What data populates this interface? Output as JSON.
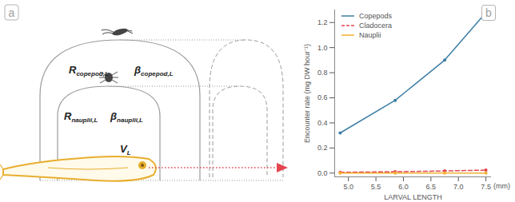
{
  "chart_data": {
    "type": "line",
    "panel_label": "b",
    "xlabel": "LARVAL LENGTH",
    "xlabel_unit": "(mm)",
    "ylabel": "Encounter rate (mg DW hour⁻¹)",
    "x": [
      4.85,
      5.85,
      6.75,
      7.5
    ],
    "series": [
      {
        "name": "Copepods",
        "color": "#3d7ea6",
        "marker": "circle",
        "line_style": "solid",
        "values": [
          0.32,
          0.58,
          0.9,
          1.28
        ]
      },
      {
        "name": "Cladocera",
        "color": "#e4464f",
        "marker": "circle",
        "line_style": "dashed",
        "values": [
          0.006,
          0.011,
          0.017,
          0.024
        ]
      },
      {
        "name": "Nauplii",
        "color": "#f2b233",
        "marker": "circle",
        "line_style": "solid",
        "values": [
          0.0002,
          0.0004,
          0.0006,
          0.0009
        ]
      }
    ],
    "xlim": [
      4.75,
      7.6
    ],
    "xticks": [
      {
        "value": 5,
        "label": "5.0"
      },
      5.5,
      {
        "value": 6,
        "label": "6.0"
      },
      6.5,
      {
        "value": 7,
        "label": "7.0"
      },
      7.5
    ],
    "ylim": [
      -0.03,
      1.3
    ],
    "yticks": [
      {
        "value": 0,
        "label": "0.0"
      },
      0.2,
      0.4,
      0.6,
      0.8,
      {
        "value": 1,
        "label": "1.0"
      },
      1.2
    ],
    "grid": false,
    "legend": "top-left"
  },
  "diagram": {
    "panel_label": "a",
    "labels": [
      {
        "symbol": "R",
        "subscript": "copepod,L"
      },
      {
        "symbol": "β",
        "subscript": "copepod,L"
      },
      {
        "symbol": "R",
        "subscript": "nauplii,L"
      },
      {
        "symbol": "β",
        "subscript": "nauplii,L"
      },
      {
        "symbol": "V",
        "subscript": "L"
      }
    ]
  }
}
